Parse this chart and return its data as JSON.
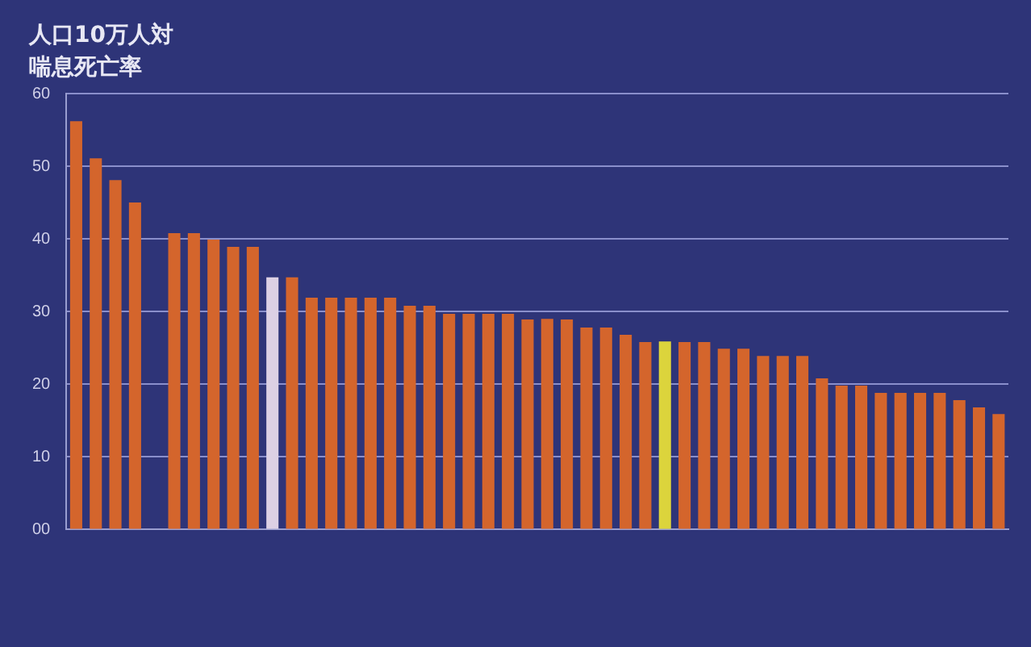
{
  "chart_data": {
    "type": "bar",
    "ylabel": "人口10万人対喘息死亡率",
    "categories": [
      null,
      null,
      null,
      null,
      null,
      null,
      null,
      null,
      null,
      null,
      null,
      null,
      null,
      null,
      null,
      null,
      null,
      null,
      null,
      null,
      null,
      null,
      null,
      null,
      null,
      null,
      null,
      null,
      null,
      null,
      null,
      null,
      null,
      null,
      null,
      null,
      null,
      null,
      null,
      null,
      null,
      null,
      null,
      null,
      null,
      null,
      null,
      null
    ],
    "values": [
      56.2,
      51.1,
      48.1,
      45,
      null,
      40.8,
      40.8,
      39.9,
      38.9,
      38.9,
      34.7,
      34.7,
      31.9,
      31.9,
      31.9,
      31.9,
      31.9,
      30.8,
      30.8,
      29.7,
      29.7,
      29.7,
      29.7,
      28.9,
      29,
      28.9,
      27.8,
      27.8,
      26.8,
      25.8,
      25.9,
      25.8,
      25.8,
      24.9,
      24.9,
      23.9,
      23.9,
      23.9,
      20.8,
      19.8,
      19.8,
      18.8,
      18.8,
      18.8,
      18.8,
      17.8,
      16.8,
      15.9
    ],
    "colors": [
      "#d4652c",
      "#d4652c",
      "#d4652c",
      "#d4652c",
      "#d4652c",
      "#d4652c",
      "#d4652c",
      "#d4652c",
      "#d4652c",
      "#d4652c",
      "#dcd0e4",
      "#d4652c",
      "#d4652c",
      "#d4652c",
      "#d4652c",
      "#d4652c",
      "#d4652c",
      "#d4652c",
      "#d4652c",
      "#d4652c",
      "#d4652c",
      "#d4652c",
      "#d4652c",
      "#d4652c",
      "#d4652c",
      "#d4652c",
      "#d4652c",
      "#d4652c",
      "#d4652c",
      "#d4652c",
      "#dcd43c",
      "#d4652c",
      "#d4652c",
      "#d4652c",
      "#d4652c",
      "#d4652c",
      "#d4652c",
      "#d4652c",
      "#d4652c",
      "#d4652c",
      "#d4652c",
      "#d4652c",
      "#d4652c",
      "#d4652c",
      "#d4652c",
      "#d4652c",
      "#d4652c",
      "#d4652c"
    ],
    "ylim": [
      0,
      60
    ],
    "yticks": [
      {
        "value": 0,
        "label": "00"
      },
      10,
      20,
      30,
      40,
      50,
      60
    ],
    "grid": "y",
    "legend": false
  }
}
